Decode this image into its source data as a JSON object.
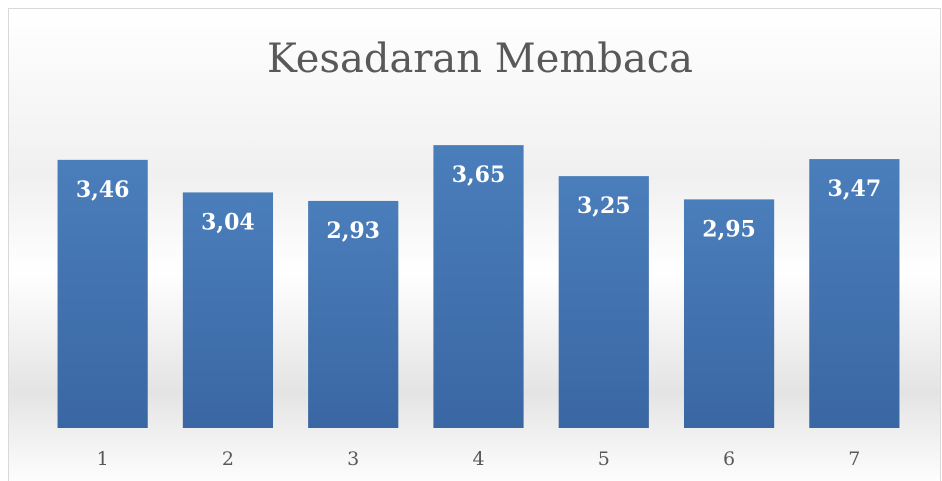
{
  "chart_data": {
    "type": "bar",
    "title": "Kesadaran Membaca",
    "categories": [
      "1",
      "2",
      "3",
      "4",
      "5",
      "6",
      "7"
    ],
    "values": [
      3.46,
      3.04,
      2.93,
      3.65,
      3.25,
      2.95,
      3.47
    ],
    "value_labels": [
      "3,46",
      "3,04",
      "2,93",
      "3,65",
      "3,25",
      "2,95",
      "3,47"
    ],
    "color": "#4a7ebb",
    "ylim": [
      0,
      4
    ]
  }
}
